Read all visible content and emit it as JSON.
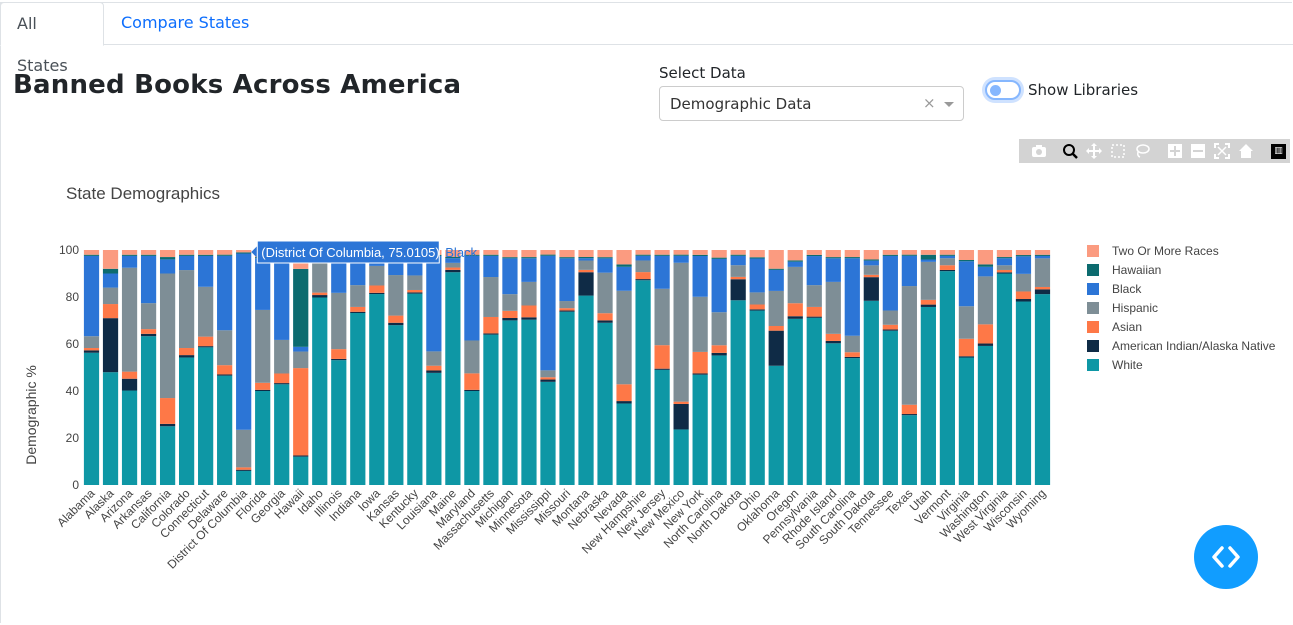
{
  "tabs": [
    {
      "label": "All States",
      "active": true
    },
    {
      "label": "Compare States",
      "active": false
    }
  ],
  "page_title": "Banned Books Across America",
  "select": {
    "label": "Select Data",
    "value": "Demographic Data",
    "clear": "×"
  },
  "toggle": {
    "label": "Show Libraries",
    "checked": false
  },
  "modebar_icons": [
    "camera-icon",
    "zoom-icon",
    "pan-icon",
    "box-select-icon",
    "lasso-icon",
    "zoom-in-icon",
    "zoom-out-icon",
    "autoscale-icon",
    "reset-axes-icon",
    "plotly-logo-icon"
  ],
  "tooltip": {
    "text": "(District Of Columbia, 75.0105)",
    "series": "Black"
  },
  "chart_data": {
    "type": "bar",
    "barmode": "stack",
    "title": "State Demographics",
    "xlabel": "",
    "ylabel": "Demographic %",
    "ylim": [
      0,
      100
    ],
    "yticks": [
      0,
      20,
      40,
      60,
      80,
      100
    ],
    "legend_position": "right",
    "categories": [
      "Alabama",
      "Alaska",
      "Arizona",
      "Arkansas",
      "California",
      "Colorado",
      "Connecticut",
      "Delaware",
      "District Of Columbia",
      "Florida",
      "Georgia",
      "Hawaii",
      "Idaho",
      "Illinois",
      "Indiana",
      "Iowa",
      "Kansas",
      "Kentucky",
      "Louisiana",
      "Maine",
      "Maryland",
      "Massachusetts",
      "Michigan",
      "Minnesota",
      "Mississippi",
      "Missouri",
      "Montana",
      "Nebraska",
      "Nevada",
      "New Hampshire",
      "New Jersey",
      "New Mexico",
      "New York",
      "North Carolina",
      "North Dakota",
      "Ohio",
      "Oklahoma",
      "Oregon",
      "Pennsylvania",
      "Rhode Island",
      "South Carolina",
      "South Dakota",
      "Tennessee",
      "Texas",
      "Utah",
      "Vermont",
      "Virginia",
      "Washington",
      "West Virginia",
      "Wisconsin",
      "Wyoming"
    ],
    "series": [
      {
        "name": "White",
        "color": "#0e97a5",
        "values": [
          56,
          48,
          40,
          63,
          25,
          54,
          58,
          47,
          6,
          40,
          42,
          12,
          77,
          51,
          71,
          78,
          67,
          79,
          47,
          91,
          40,
          64,
          69,
          70,
          45,
          73,
          81,
          68,
          34,
          88,
          49,
          24,
          46,
          51,
          79,
          72,
          51,
          64,
          69,
          60,
          54,
          78,
          65,
          30,
          75,
          91,
          51,
          58,
          90,
          73,
          80
        ]
      },
      {
        "name": "American Indian/Alaska Native",
        "color": "#0f2b46",
        "values": [
          1,
          23,
          5,
          1,
          1,
          1,
          0.5,
          0.5,
          0.5,
          0.5,
          0.5,
          0.5,
          1,
          0.5,
          0.5,
          0.5,
          1,
          0.5,
          1,
          1,
          0.5,
          0.5,
          1,
          1,
          1,
          0.5,
          10,
          1,
          1,
          0.5,
          0.5,
          11,
          0.5,
          1,
          9,
          0.5,
          15,
          1,
          0.5,
          1,
          0.5,
          10,
          0.5,
          0.5,
          1,
          0.5,
          0.5,
          1,
          0.5,
          1,
          2
        ]
      },
      {
        "name": "Asian",
        "color": "#fe7847",
        "values": [
          1,
          6,
          3,
          2,
          11,
          3,
          4,
          4,
          1,
          3,
          4,
          37,
          1,
          4,
          2,
          3,
          3,
          1,
          2,
          1,
          7,
          7,
          3,
          5,
          1,
          1,
          1,
          3,
          7,
          3,
          10,
          1,
          9,
          3,
          1,
          2,
          2,
          5,
          4,
          3,
          2,
          1,
          2,
          4,
          2,
          2,
          7,
          8,
          1,
          3,
          1
        ]
      },
      {
        "name": "Hispanic",
        "color": "#7e8e96",
        "values": [
          5,
          7,
          44,
          11,
          53,
          33,
          21,
          15,
          16,
          31,
          14,
          7,
          14,
          23,
          9,
          8,
          17,
          6,
          6,
          2,
          14,
          17,
          7,
          10,
          3,
          3,
          4,
          17,
          39,
          5,
          24,
          60,
          23,
          13,
          5,
          5,
          15,
          14,
          9,
          22,
          7,
          4,
          6,
          51,
          16,
          3,
          13,
          20,
          2,
          7,
          12
        ]
      },
      {
        "name": "Black",
        "color": "#2c75d6",
        "values": [
          34,
          6,
          5,
          20,
          6,
          6,
          13,
          32,
          75.0105,
          22,
          34,
          2,
          1,
          15,
          12,
          3,
          6,
          8,
          40,
          2,
          36,
          9,
          15,
          10,
          50,
          18,
          1,
          6,
          10,
          2,
          14,
          3,
          17,
          21,
          4,
          14,
          9,
          2,
          12,
          10,
          33,
          2,
          23,
          13,
          1,
          1,
          18,
          4,
          3,
          7,
          1
        ]
      },
      {
        "name": "Hawaiian",
        "color": "#0c6b6f",
        "values": [
          0.5,
          2,
          0.5,
          0.5,
          1,
          0.5,
          0.5,
          0.5,
          0.5,
          0.5,
          0.5,
          33,
          0.5,
          0.5,
          0.5,
          0.5,
          0.5,
          0.5,
          0.5,
          0.5,
          0.5,
          0.5,
          0.5,
          0.5,
          0.5,
          0.5,
          0.5,
          0.5,
          1,
          0.5,
          0.5,
          0.5,
          0.5,
          0.5,
          0.5,
          0.5,
          0.5,
          0.5,
          0.5,
          0.5,
          0.5,
          0.5,
          0.5,
          0.5,
          2,
          0.5,
          0.5,
          1,
          0.5,
          0.5,
          0.5
        ]
      },
      {
        "name": "Two Or More Races",
        "color": "#fb9b80",
        "values": [
          2,
          8,
          2,
          2,
          3,
          2,
          2,
          2,
          1,
          3,
          3,
          8,
          2,
          2,
          2,
          3,
          4,
          2,
          2,
          3,
          2,
          2,
          3,
          3,
          2,
          3,
          3,
          3,
          6,
          2,
          2,
          2,
          2,
          3,
          2,
          3,
          8,
          4,
          2,
          3,
          3,
          4,
          2,
          2,
          2,
          2,
          4,
          6,
          3,
          2,
          2
        ]
      }
    ]
  }
}
